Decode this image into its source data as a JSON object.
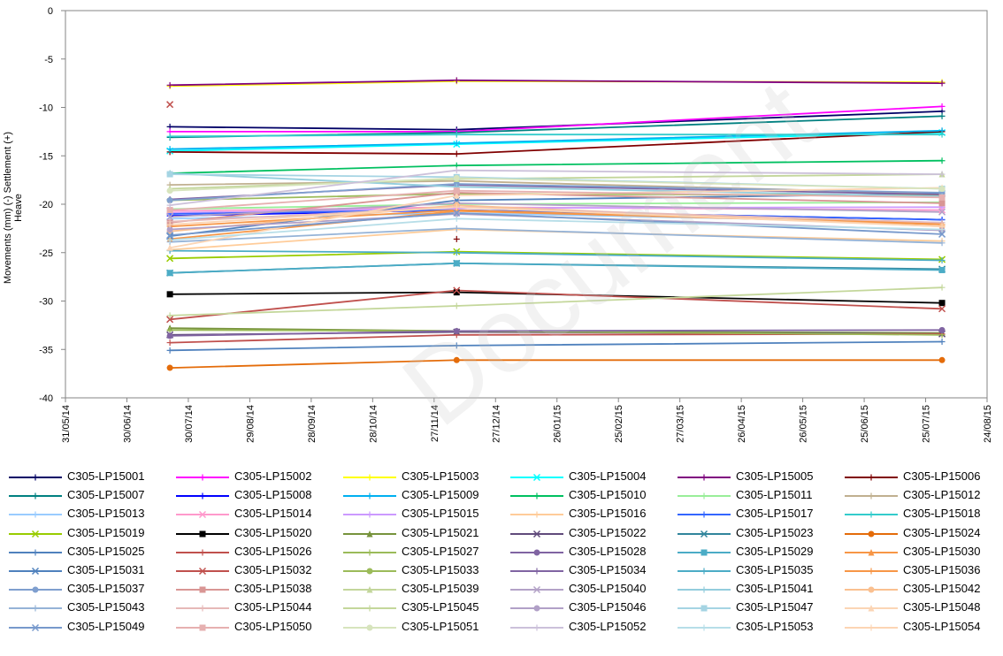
{
  "chart_data": {
    "type": "line",
    "title": "",
    "xlabel": "",
    "ylabel": "Movements (mm) (-) Settlement (+) Heave",
    "ylim": [
      -40,
      0
    ],
    "yticks": [
      "0",
      "-5",
      "-10",
      "-15",
      "-20",
      "-25",
      "-30",
      "-35",
      "-40"
    ],
    "xticks": [
      "31/05/14",
      "30/06/14",
      "30/07/14",
      "29/08/14",
      "28/09/14",
      "28/10/14",
      "27/11/14",
      "27/12/14",
      "26/01/15",
      "25/02/15",
      "27/03/15",
      "26/04/15",
      "26/05/15",
      "25/06/15",
      "25/07/15",
      "24/08/15"
    ],
    "xlim": [
      "31/05/14",
      "24/08/15"
    ],
    "x": [
      "21/07/14",
      "08/12/14",
      "02/08/15"
    ],
    "grid": false,
    "legend_position": "bottom",
    "series": [
      {
        "name": "C305-LP15001",
        "values": [
          -12.0,
          -12.3,
          -10.4
        ],
        "color": "#000066",
        "marker": "plus"
      },
      {
        "name": "C305-LP15002",
        "values": [
          -12.5,
          -12.5,
          -9.9
        ],
        "color": "#ff00ff",
        "marker": "plus"
      },
      {
        "name": "C305-LP15003",
        "values": [
          -7.8,
          -7.3,
          -7.4
        ],
        "color": "#ffff00",
        "marker": "plus"
      },
      {
        "name": "C305-LP15004",
        "values": [
          -14.5,
          -13.8,
          -12.6
        ],
        "color": "#00ffff",
        "marker": "x"
      },
      {
        "name": "C305-LP15005",
        "values": [
          -7.7,
          -7.2,
          -7.5
        ],
        "color": "#800080",
        "marker": "plus"
      },
      {
        "name": "C305-LP15006",
        "values": [
          -14.6,
          -14.8,
          -12.5
        ],
        "color": "#800000",
        "marker": "plus"
      },
      {
        "name": "C305-LP15007",
        "values": [
          -13.1,
          -12.6,
          -10.9
        ],
        "color": "#008080",
        "marker": "plus"
      },
      {
        "name": "C305-LP15008",
        "values": [
          -21.2,
          -20.6,
          -21.6
        ],
        "color": "#0000ff",
        "marker": "plus"
      },
      {
        "name": "C305-LP15009",
        "values": [
          -14.3,
          -13.7,
          -12.4
        ],
        "color": "#00b0f0",
        "marker": "plus"
      },
      {
        "name": "C305-LP15010",
        "values": [
          -16.8,
          -16.0,
          -15.5
        ],
        "color": "#00c060",
        "marker": "plus"
      },
      {
        "name": "C305-LP15011",
        "values": [
          -20.5,
          -20.0,
          -19.8
        ],
        "color": "#99ee99",
        "marker": "plus"
      },
      {
        "name": "C305-LP15012",
        "values": [
          -18.0,
          -17.6,
          -18.9
        ],
        "color": "#c0b090",
        "marker": "plus"
      },
      {
        "name": "C305-LP15013",
        "values": [
          -21.5,
          -20.9,
          -21.9
        ],
        "color": "#99ccff",
        "marker": "plus"
      },
      {
        "name": "C305-LP15014",
        "values": [
          -20.7,
          -20.3,
          -20.6
        ],
        "color": "#ff99cc",
        "marker": "x"
      },
      {
        "name": "C305-LP15015",
        "values": [
          -20.9,
          -20.4,
          -20.3
        ],
        "color": "#cc99ff",
        "marker": "plus"
      },
      {
        "name": "C305-LP15016",
        "values": [
          -24.7,
          -22.6,
          -23.8
        ],
        "color": "#ffcc99",
        "marker": "plus"
      },
      {
        "name": "C305-LP15017",
        "values": [
          -21.0,
          -20.6,
          -21.6
        ],
        "color": "#3366ff",
        "marker": "plus"
      },
      {
        "name": "C305-LP15018",
        "values": [
          -13.0,
          -12.8,
          -12.8
        ],
        "color": "#33cccc",
        "marker": "plus"
      },
      {
        "name": "C305-LP15019",
        "values": [
          -25.6,
          -24.9,
          -25.7
        ],
        "color": "#99cc00",
        "marker": "x"
      },
      {
        "name": "C305-LP15020",
        "values": [
          -29.3,
          -29.1,
          -30.2
        ],
        "color": "#000000",
        "marker": "square"
      },
      {
        "name": "C305-LP15021",
        "values": [
          -32.8,
          -33.1,
          -33.3
        ],
        "color": "#77933c",
        "marker": "triangle"
      },
      {
        "name": "C305-LP15022",
        "values": [
          -33.5,
          -33.2,
          -33.4
        ],
        "color": "#604a7b",
        "marker": "x"
      },
      {
        "name": "C305-LP15023",
        "values": [
          -27.1,
          -26.1,
          -26.7
        ],
        "color": "#31859c",
        "marker": "x"
      },
      {
        "name": "C305-LP15024",
        "values": [
          -36.9,
          -36.1,
          -36.1
        ],
        "color": "#e46c0a",
        "marker": "circle"
      },
      {
        "name": "C305-LP15025",
        "values": [
          -35.1,
          -34.6,
          -34.2
        ],
        "color": "#4f81bd",
        "marker": "plus"
      },
      {
        "name": "C305-LP15026",
        "values": [
          -34.3,
          -33.5,
          -33.4
        ],
        "color": "#c0504d",
        "marker": "plus"
      },
      {
        "name": "C305-LP15027",
        "values": [
          -33.0,
          -33.1,
          -33.5
        ],
        "color": "#9bbb59",
        "marker": "plus"
      },
      {
        "name": "C305-LP15028",
        "values": [
          -33.6,
          -33.1,
          -33.0
        ],
        "color": "#8064a2",
        "marker": "circle"
      },
      {
        "name": "C305-LP15029",
        "values": [
          -27.1,
          -26.1,
          -26.8
        ],
        "color": "#4bacc6",
        "marker": "square"
      },
      {
        "name": "C305-LP15030",
        "values": [
          -23.6,
          -20.7,
          -22.0
        ],
        "color": "#f79646",
        "marker": "triangle"
      },
      {
        "name": "C305-LP15031",
        "values": [
          -23.3,
          -19.6,
          -18.9
        ],
        "color": "#4f81bd",
        "marker": "x"
      },
      {
        "name": "C305-LP15032",
        "values": [
          -31.9,
          -28.9,
          -30.8
        ],
        "color": "#c0504d",
        "marker": "x"
      },
      {
        "name": "C305-LP15033",
        "values": [
          -19.6,
          -18.9,
          -19.1
        ],
        "color": "#9bbb59",
        "marker": "circle"
      },
      {
        "name": "C305-LP15034",
        "values": [
          -19.5,
          -18.0,
          -19.0
        ],
        "color": "#8064a2",
        "marker": "plus"
      },
      {
        "name": "C305-LP15035",
        "values": [
          -24.8,
          -25.0,
          -25.8
        ],
        "color": "#4bacc6",
        "marker": "plus"
      },
      {
        "name": "C305-LP15036",
        "values": [
          -22.3,
          -20.6,
          -22.1
        ],
        "color": "#f79646",
        "marker": "plus"
      },
      {
        "name": "C305-LP15037",
        "values": [
          -19.6,
          -17.9,
          -18.8
        ],
        "color": "#7f9fcf",
        "marker": "circle"
      },
      {
        "name": "C305-LP15038",
        "values": [
          -21.9,
          -18.8,
          -19.9
        ],
        "color": "#d99694",
        "marker": "square"
      },
      {
        "name": "C305-LP15039",
        "values": [
          -18.4,
          -17.4,
          -16.9
        ],
        "color": "#c3d69b",
        "marker": "triangle"
      },
      {
        "name": "C305-LP15040",
        "values": [
          -21.3,
          -19.9,
          -20.8
        ],
        "color": "#b3a2c7",
        "marker": "x"
      },
      {
        "name": "C305-LP15041",
        "values": [
          -16.8,
          -18.2,
          -19.2
        ],
        "color": "#93cddd",
        "marker": "plus"
      },
      {
        "name": "C305-LP15042",
        "values": [
          -22.8,
          -20.1,
          -22.3
        ],
        "color": "#fac090",
        "marker": "circle"
      },
      {
        "name": "C305-LP15043",
        "values": [
          -23.9,
          -22.5,
          -24.0
        ],
        "color": "#95b3d7",
        "marker": "plus"
      },
      {
        "name": "C305-LP15044",
        "values": [
          -21.8,
          -20.3,
          -21.9
        ],
        "color": "#e6b9b8",
        "marker": "plus"
      },
      {
        "name": "C305-LP15045",
        "values": [
          -31.5,
          -30.5,
          -28.6
        ],
        "color": "#c4d79b",
        "marker": "plus"
      },
      {
        "name": "C305-LP15046",
        "values": [
          -22.6,
          -21.0,
          -22.7
        ],
        "color": "#b1a0c7",
        "marker": "circle"
      },
      {
        "name": "C305-LP15047",
        "values": [
          -16.9,
          -17.2,
          -18.4
        ],
        "color": "#a5d4e3",
        "marker": "square"
      },
      {
        "name": "C305-LP15048",
        "values": [
          -24.5,
          -19.1,
          -18.3
        ],
        "color": "#fbd5b5",
        "marker": "triangle"
      },
      {
        "name": "C305-LP15049",
        "values": [
          -23.2,
          -20.9,
          -23.1
        ],
        "color": "#7799cc",
        "marker": "x"
      },
      {
        "name": "C305-LP15050",
        "values": [
          -20.6,
          -18.6,
          -19.3
        ],
        "color": "#e6b0b0",
        "marker": "square"
      },
      {
        "name": "C305-LP15051",
        "values": [
          -18.6,
          -17.3,
          -18.4
        ],
        "color": "#d7e4bd",
        "marker": "circle"
      },
      {
        "name": "C305-LP15052",
        "values": [
          -20.1,
          -16.5,
          -16.9
        ],
        "color": "#ccc1da",
        "marker": "plus"
      },
      {
        "name": "C305-LP15053",
        "values": [
          -23.7,
          -21.5,
          -22.6
        ],
        "color": "#b7dee8",
        "marker": "plus"
      },
      {
        "name": "C305-LP15054",
        "values": [
          -22.1,
          -20.3,
          -22.3
        ],
        "color": "#fcd5b4",
        "marker": "plus"
      }
    ],
    "outliers": [
      {
        "x": "21/07/14",
        "y": -9.7,
        "color": "#c0504d",
        "marker": "x"
      },
      {
        "x": "08/12/14",
        "y": -23.6,
        "color": "#800000",
        "marker": "plus"
      }
    ]
  },
  "watermark": "Document"
}
